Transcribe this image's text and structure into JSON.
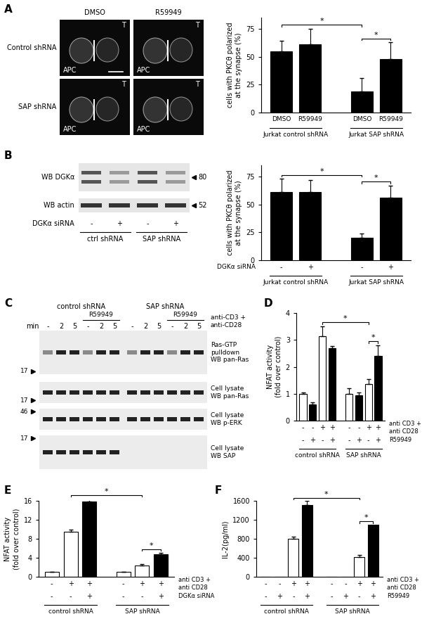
{
  "panel_labels": [
    "A",
    "B",
    "C",
    "D",
    "E",
    "F"
  ],
  "micrographs": {
    "columns": [
      "DMSO",
      "R59949"
    ],
    "rows": [
      "Control shRNA",
      "SAP shRNA"
    ],
    "cell_labels": [
      "T",
      "APC"
    ]
  },
  "blot_B": {
    "rows": [
      {
        "label": "WB DGKα",
        "marker": 80
      },
      {
        "label": "WB actin",
        "marker": 52
      }
    ],
    "row_label": "DGKα siRNA",
    "marks": [
      "-",
      "+",
      "-",
      "+"
    ],
    "groups": [
      "ctrl shRNA",
      "SAP shRNA"
    ]
  },
  "blot_C": {
    "groups": [
      "control shRNA",
      "SAP shRNA"
    ],
    "treatment": "R59949",
    "time_label": "min",
    "lanes": [
      "-",
      "2",
      "5",
      "-",
      "2",
      "5",
      "-",
      "2",
      "5",
      "-",
      "2",
      "5"
    ],
    "stimulus": "anti-CD3 +\nanti-CD28",
    "blots": [
      {
        "label": "Ras-GTP\npulldown\nWB pan-Ras",
        "marker": 17
      },
      {
        "label": "Cell lysate\nWB pan-Ras",
        "marker": 17
      },
      {
        "label": "Cell lysate\nWB p-ERK",
        "marker": 46
      },
      {
        "label": "Cell lysate\nWB SAP",
        "marker": 17
      }
    ]
  },
  "chart_data": [
    {
      "type": "bar",
      "ylabel": "cells with PKCθ polarized\nat the synapse (%)",
      "ylim": [
        0,
        85
      ],
      "yticks": [
        0,
        25,
        50,
        75
      ],
      "groups": [
        {
          "label": "Jurkat control shRNA",
          "categories": [
            "DMSO",
            "R59949"
          ],
          "values": [
            55,
            61
          ],
          "errors": [
            9,
            14
          ],
          "colors": [
            "#000000",
            "#000000"
          ]
        },
        {
          "label": "Jurkat SAP shRNA",
          "categories": [
            "DMSO",
            "R59949"
          ],
          "values": [
            19,
            48
          ],
          "errors": [
            12,
            15
          ],
          "colors": [
            "#000000",
            "#000000"
          ]
        }
      ],
      "significance": [
        {
          "bars": [
            0,
            2
          ],
          "label": "*"
        },
        {
          "bars": [
            2,
            3
          ],
          "label": "*"
        }
      ]
    },
    {
      "type": "bar",
      "ylabel": "cells with PKCθ polarized\nat the synapse (%)",
      "ylim": [
        0,
        85
      ],
      "yticks": [
        0,
        25,
        50,
        75
      ],
      "row_labels": [
        "DGKα siRNA"
      ],
      "groups": [
        {
          "label": "Jurkat control shRNA",
          "values": [
            61,
            61
          ],
          "errors": [
            12,
            11
          ],
          "colors": [
            "#000000",
            "#000000"
          ],
          "marks": [
            [
              "-",
              "+"
            ]
          ]
        },
        {
          "label": "Jurkat SAP shRNA",
          "values": [
            20,
            56
          ],
          "errors": [
            4,
            11
          ],
          "colors": [
            "#000000",
            "#000000"
          ],
          "marks": [
            [
              "-",
              "+"
            ]
          ]
        }
      ],
      "significance": [
        {
          "bars": [
            0,
            2
          ],
          "label": "*"
        },
        {
          "bars": [
            2,
            3
          ],
          "label": "*"
        }
      ]
    },
    {
      "type": "bar",
      "ylabel": "NFAT activity\n(fold over control)",
      "ylim": [
        0,
        4
      ],
      "yticks": [
        0,
        1,
        2,
        3,
        4
      ],
      "row_labels": [
        "anti CD3 +\nanti CD28",
        "R59949"
      ],
      "groups": [
        {
          "label": "control shRNA",
          "values": [
            1.0,
            0.6,
            3.15,
            2.7
          ],
          "errors": [
            0.05,
            0.08,
            0.35,
            0.08
          ],
          "colors": [
            "#ffffff",
            "#000000",
            "#ffffff",
            "#000000"
          ],
          "marks": [
            [
              "-",
              "-",
              "+",
              "+"
            ],
            [
              "-",
              "+",
              "-",
              "+"
            ]
          ]
        },
        {
          "label": "SAP shRNA",
          "values": [
            1.0,
            0.95,
            1.35,
            2.4
          ],
          "errors": [
            0.2,
            0.1,
            0.2,
            0.4
          ],
          "colors": [
            "#ffffff",
            "#000000",
            "#ffffff",
            "#000000"
          ],
          "marks": [
            [
              "-",
              "-",
              "+",
              "+"
            ],
            [
              "-",
              "+",
              "-",
              "+"
            ]
          ]
        }
      ],
      "significance": [
        {
          "bars": [
            2,
            6
          ],
          "label": "*"
        },
        {
          "bars": [
            6,
            7
          ],
          "label": "*"
        }
      ]
    },
    {
      "type": "bar",
      "ylabel": "NFAT activity\n(fold over control)",
      "ylim": [
        0,
        16
      ],
      "yticks": [
        0,
        4,
        8,
        12,
        16
      ],
      "row_labels": [
        "anti CD3 +\nanti CD28",
        "DGKα siRNA"
      ],
      "groups": [
        {
          "label": "control shRNA",
          "values": [
            1.0,
            9.5,
            15.8
          ],
          "errors": [
            0.1,
            0.5,
            0.8
          ],
          "colors": [
            "#ffffff",
            "#ffffff",
            "#000000"
          ],
          "marks": [
            [
              "-",
              "+",
              "+"
            ],
            [
              "-",
              "-",
              "+"
            ]
          ]
        },
        {
          "label": "SAP shRNA",
          "values": [
            1.0,
            2.4,
            4.8
          ],
          "errors": [
            0.1,
            0.2,
            0.3
          ],
          "colors": [
            "#ffffff",
            "#ffffff",
            "#000000"
          ],
          "marks": [
            [
              "-",
              "+",
              "+"
            ],
            [
              "-",
              "-",
              "+"
            ]
          ]
        }
      ],
      "significance": [
        {
          "bars": [
            1,
            4
          ],
          "label": "*"
        },
        {
          "bars": [
            4,
            5
          ],
          "label": "*"
        }
      ]
    },
    {
      "type": "bar",
      "ylabel": "IL-2(pg/ml)",
      "ylim": [
        0,
        1600
      ],
      "yticks": [
        0,
        400,
        800,
        1200,
        1600
      ],
      "row_labels": [
        "anti CD3 +\nanti CD28",
        "R59949"
      ],
      "groups": [
        {
          "label": "control shRNA",
          "values": [
            0,
            0,
            800,
            1510
          ],
          "errors": [
            0,
            0,
            40,
            90
          ],
          "colors": [
            "#ffffff",
            "#000000",
            "#ffffff",
            "#000000"
          ],
          "marks": [
            [
              "-",
              "-",
              "+",
              "+"
            ],
            [
              "-",
              "+",
              "-",
              "+"
            ]
          ]
        },
        {
          "label": "SAP shRNA",
          "values": [
            0,
            0,
            410,
            1100
          ],
          "errors": [
            0,
            0,
            50,
            0
          ],
          "colors": [
            "#ffffff",
            "#000000",
            "#ffffff",
            "#000000"
          ],
          "marks": [
            [
              "-",
              "-",
              "+",
              "+"
            ],
            [
              "-",
              "+",
              "-",
              "+"
            ]
          ]
        }
      ],
      "significance": [
        {
          "bars": [
            2,
            6
          ],
          "label": "*"
        },
        {
          "bars": [
            6,
            7
          ],
          "label": "*"
        }
      ]
    }
  ]
}
